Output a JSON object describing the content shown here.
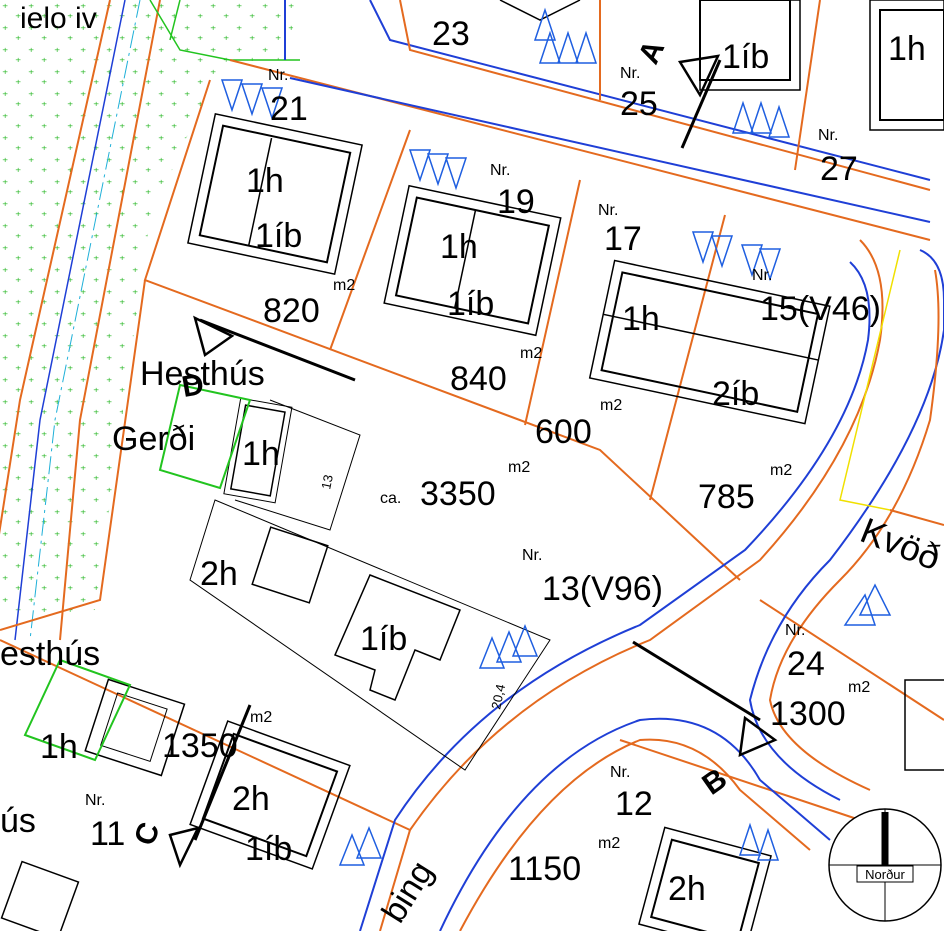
{
  "map": {
    "street_labels": {
      "top_left": "ielo iv",
      "kvod": "Kvöð",
      "bing": "bing"
    },
    "nr_prefix": "Nr.",
    "m2_unit": "m2",
    "lots": {
      "n23": "23",
      "n25": "25",
      "n27": "27",
      "n21": "21",
      "n19": "19",
      "n17": "17",
      "n15": "15(V46)",
      "n13": "13(V96)",
      "n24": "24",
      "n12": "12",
      "n11": "11"
    },
    "areas": {
      "a820": "820",
      "a840": "840",
      "a600": "600",
      "a785": "785",
      "ca": "ca.",
      "a3350": "3350",
      "a1300": "1300",
      "a1350": "1350",
      "a1150": "1150"
    },
    "building_labels": {
      "h1": "1h",
      "ib1": "1íb",
      "ib2": "2íb",
      "h2": "2h",
      "hesthus": "Hesthús",
      "hesthus_left": "esthús",
      "hus_left": "ús",
      "gerdi": "Gerði"
    },
    "dimensions": {
      "d13": "13",
      "d204": "20,4"
    },
    "sections": {
      "A": "A",
      "B": "B",
      "C": "C",
      "D": "D"
    },
    "compass_label": "Norður",
    "colors": {
      "lot_line": "#e46a1f",
      "road_line": "#1f3fd6",
      "green_area": "#22c41f",
      "parking": "#1f5fe0",
      "yellow": "#f0e000"
    }
  }
}
